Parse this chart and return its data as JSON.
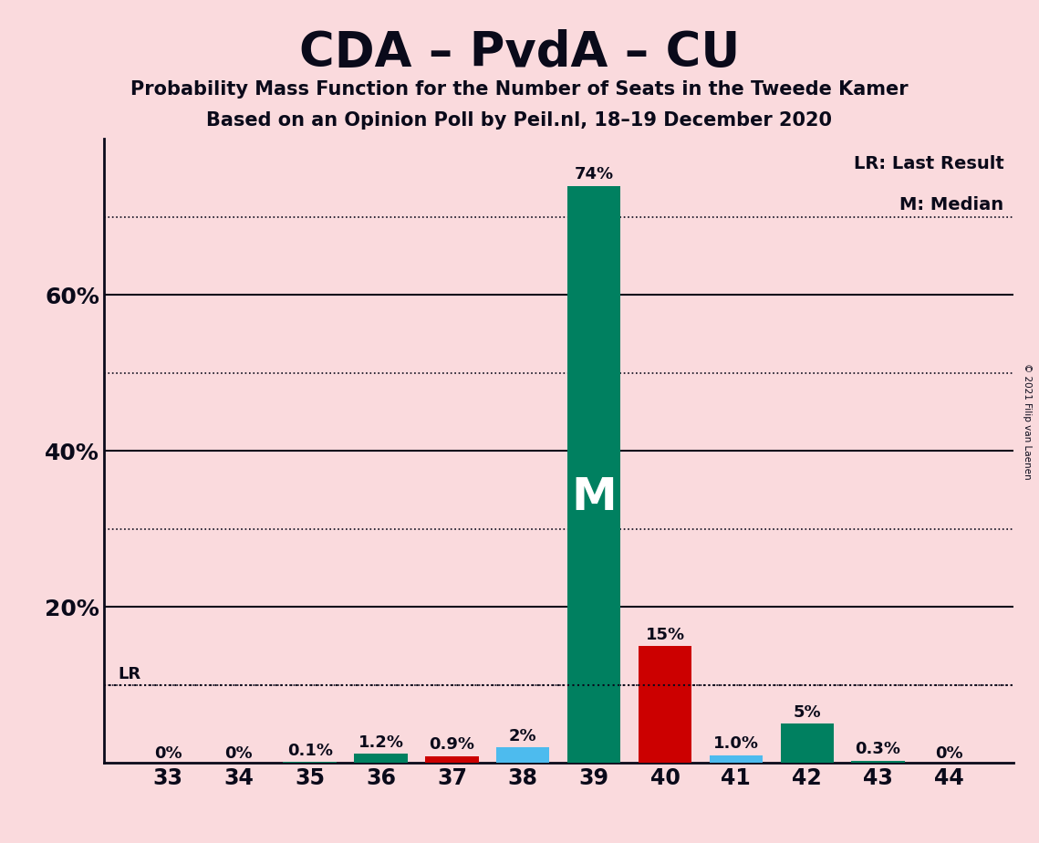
{
  "title": "CDA – PvdA – CU",
  "subtitle1": "Probability Mass Function for the Number of Seats in the Tweede Kamer",
  "subtitle2": "Based on an Opinion Poll by Peil.nl, 18–19 December 2020",
  "copyright": "© 2021 Filip van Laenen",
  "seats": [
    33,
    34,
    35,
    36,
    37,
    38,
    39,
    40,
    41,
    42,
    43,
    44
  ],
  "values": [
    0.0,
    0.0,
    0.001,
    0.012,
    0.009,
    0.02,
    0.74,
    0.15,
    0.01,
    0.05,
    0.003,
    0.0
  ],
  "labels": [
    "0%",
    "0%",
    "0.1%",
    "1.2%",
    "0.9%",
    "2%",
    "74%",
    "15%",
    "1.0%",
    "5%",
    "0.3%",
    "0%"
  ],
  "bar_colors": [
    "#008060",
    "#008060",
    "#008060",
    "#008060",
    "#CC0000",
    "#4DBBEE",
    "#008060",
    "#CC0000",
    "#4DBBEE",
    "#008060",
    "#008060",
    "#008060"
  ],
  "median_seat": 39,
  "lr_value": 0.1,
  "background_color": "#FADADD",
  "text_color": "#0a0a1a",
  "ylim": [
    0,
    0.8
  ],
  "solid_grid": [
    0.2,
    0.4,
    0.6
  ],
  "dotted_grid": [
    0.1,
    0.3,
    0.5,
    0.7
  ],
  "solid_ytick_labels": {
    "0.2": "20%",
    "0.4": "40%",
    "0.6": "60%"
  },
  "bar_width": 0.75,
  "figsize": [
    11.39,
    9.24
  ],
  "dpi": 100
}
